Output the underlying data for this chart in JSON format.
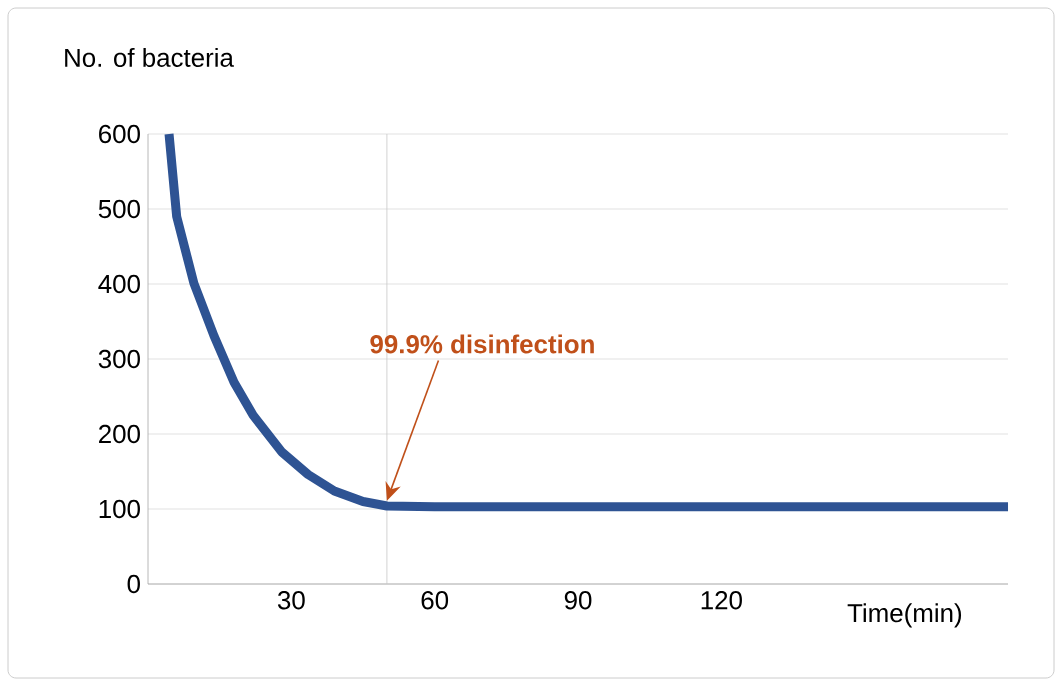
{
  "chart_data": {
    "type": "line",
    "ylabel": "No. of bacteria",
    "xlabel": "Time(min)",
    "x": [
      4.4,
      6,
      9.6,
      13.8,
      18,
      22,
      28,
      33.5,
      39,
      45,
      50,
      60,
      90,
      120,
      150,
      180
    ],
    "series": [
      {
        "color": "#2e5393",
        "values": [
          600,
          490,
          401,
          331,
          269,
          225,
          176,
          146,
          124,
          110,
          104,
          103,
          103,
          103,
          103,
          103
        ]
      }
    ],
    "xlim": [
      0,
      180
    ],
    "ylim": [
      0,
      600
    ],
    "xticks": [
      30,
      60,
      90,
      120
    ],
    "yticks": [
      0,
      100,
      200,
      300,
      400,
      500,
      600
    ],
    "grid": "y",
    "marker": "none",
    "line_style": "solid",
    "ref_lines": [
      {
        "axis": "x",
        "value": 50,
        "color": "#c8c8c8"
      }
    ],
    "annotations": [
      {
        "text": "99.9% disinfection",
        "x": 50,
        "y": 103
      }
    ]
  }
}
